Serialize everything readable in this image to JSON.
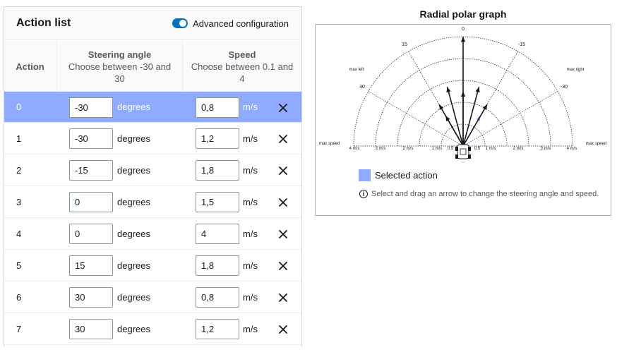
{
  "panel": {
    "title": "Action list",
    "toggle_label": "Advanced configuration",
    "toggle_on": true
  },
  "columns": {
    "action": "Action",
    "steering_title": "Steering angle",
    "steering_sub1": "Choose between -30 and",
    "steering_sub2": "30",
    "speed_title": "Speed",
    "speed_sub1": "Choose between 0.1 and",
    "speed_sub2": "4"
  },
  "units": {
    "steering": "degrees",
    "speed": "m/s"
  },
  "selected_index": 0,
  "actions": [
    {
      "index": "0",
      "steering": "-30",
      "speed": "0,8"
    },
    {
      "index": "1",
      "steering": "-30",
      "speed": "1,2"
    },
    {
      "index": "2",
      "steering": "-15",
      "speed": "1,8"
    },
    {
      "index": "3",
      "steering": "0",
      "speed": "1,5"
    },
    {
      "index": "4",
      "steering": "0",
      "speed": "4"
    },
    {
      "index": "5",
      "steering": "15",
      "speed": "1,8"
    },
    {
      "index": "6",
      "steering": "30",
      "speed": "0,8"
    },
    {
      "index": "7",
      "steering": "30",
      "speed": "1,2"
    }
  ],
  "graph": {
    "title": "Radial polar graph",
    "angle_labels": [
      "0",
      "15",
      "-15",
      "30",
      "-30"
    ],
    "side_labels": {
      "max_left": "max left",
      "max_right": "max right",
      "max_speed_left": "max speed",
      "max_speed_right": "max speed"
    },
    "speed_labels_left": [
      "4 m/s",
      "3 m/s",
      "2 m/s",
      "1 m/s",
      "0.5"
    ],
    "speed_labels_right": [
      "0.5",
      "1 m/s",
      "2 m/s",
      "3 m/s",
      "4 m/s"
    ],
    "legend_label": "Selected action",
    "hint": "Select and drag an arrow to change the steering angle and speed.",
    "colors": {
      "selected": "#8eabff",
      "arrow": "#16191f",
      "accent": "#0073bb"
    }
  }
}
